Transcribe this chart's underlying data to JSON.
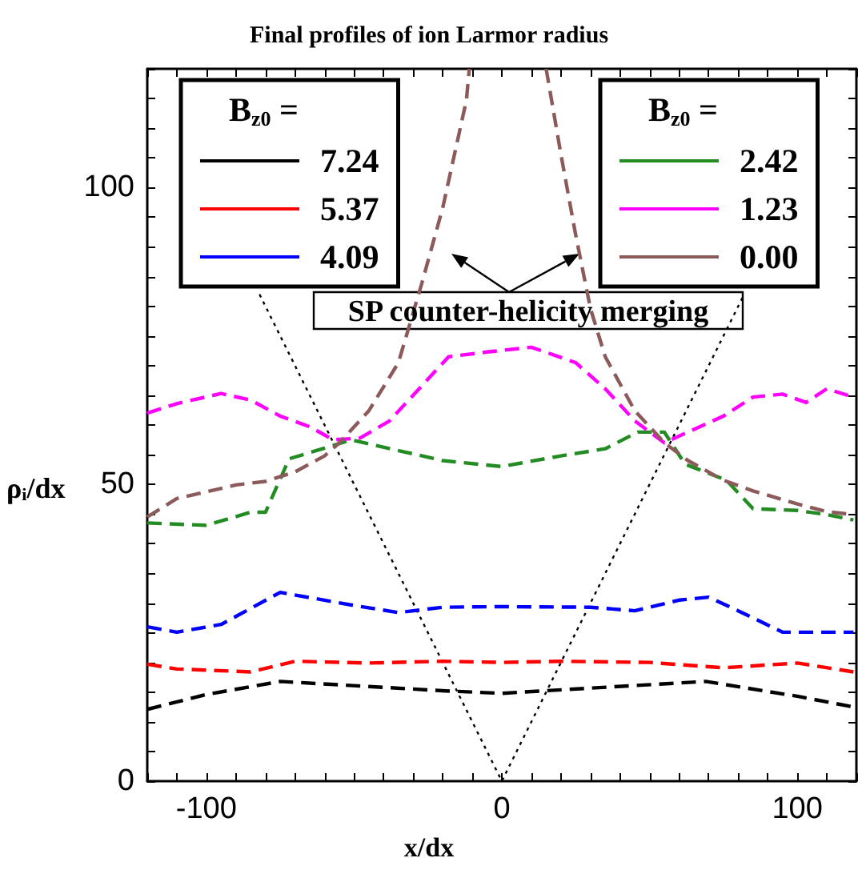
{
  "chart_data": {
    "type": "line",
    "title": "Final profiles of ion Larmor radius",
    "xlabel": "x/dx",
    "ylabel": "ρ$_{i}$/dx",
    "legend_title": "B$_{z0}$ =",
    "xlim": [
      -120,
      120
    ],
    "ylim": [
      0,
      120
    ],
    "xticks": [
      {
        "value": -120,
        "label": null
      },
      {
        "value": -110,
        "label": null
      },
      -100,
      {
        "value": -90,
        "label": null
      },
      {
        "value": -80,
        "label": null
      },
      {
        "value": -70,
        "label": null
      },
      {
        "value": -60,
        "label": null
      },
      {
        "value": -50,
        "label": null
      },
      {
        "value": -40,
        "label": null
      },
      {
        "value": -30,
        "label": null
      },
      {
        "value": -20,
        "label": null
      },
      {
        "value": -10,
        "label": null
      },
      0,
      {
        "value": 10,
        "label": null
      },
      {
        "value": 20,
        "label": null
      },
      {
        "value": 30,
        "label": null
      },
      {
        "value": 40,
        "label": null
      },
      {
        "value": 50,
        "label": null
      },
      {
        "value": 60,
        "label": null
      },
      {
        "value": 70,
        "label": null
      },
      {
        "value": 80,
        "label": null
      },
      {
        "value": 90,
        "label": null
      },
      100,
      {
        "value": 110,
        "label": null
      },
      {
        "value": 120,
        "label": null
      }
    ],
    "yticks": [
      0,
      {
        "value": 5,
        "label": null
      },
      {
        "value": 10,
        "label": null
      },
      {
        "value": 15,
        "label": null
      },
      {
        "value": 20,
        "label": null
      },
      {
        "value": 25,
        "label": null
      },
      {
        "value": 30,
        "label": null
      },
      {
        "value": 35,
        "label": null
      },
      {
        "value": 40,
        "label": null
      },
      {
        "value": 45,
        "label": null
      },
      50,
      {
        "value": 55,
        "label": null
      },
      {
        "value": 60,
        "label": null
      },
      {
        "value": 65,
        "label": null
      },
      {
        "value": 70,
        "label": null
      },
      {
        "value": 75,
        "label": null
      },
      {
        "value": 80,
        "label": null
      },
      {
        "value": 85,
        "label": null
      },
      {
        "value": 90,
        "label": null
      },
      {
        "value": 95,
        "label": null
      },
      100,
      {
        "value": 105,
        "label": null
      },
      {
        "value": 110,
        "label": null
      },
      {
        "value": 115,
        "label": null
      },
      {
        "value": 120,
        "label": null
      }
    ],
    "grid": false,
    "legend": "top",
    "marker": "none",
    "line_style": "dashed",
    "annotations": [
      "SP counter-helicity merging"
    ],
    "series": [
      {
        "name": "7.24",
        "color": "#000000",
        "x": [
          -120,
          -100,
          -75,
          -19,
          0,
          69,
          100,
          119
        ],
        "values": [
          12.1,
          14.6,
          16.8,
          15.2,
          14.8,
          16.8,
          14.3,
          12.5
        ]
      },
      {
        "name": "5.37",
        "color": "#ff0000",
        "x": [
          -120,
          -110,
          -85,
          -70,
          -45,
          -20,
          0,
          20,
          50,
          75,
          100,
          119
        ],
        "values": [
          19.7,
          18.9,
          18.4,
          20.2,
          19.9,
          20.2,
          20.0,
          20.2,
          20.0,
          19.1,
          19.9,
          18.4
        ]
      },
      {
        "name": "4.09",
        "color": "#0000ff",
        "x": [
          -120,
          -110,
          -95,
          -75,
          -50,
          -35,
          -20,
          0,
          30,
          45,
          60,
          70,
          80,
          95,
          119
        ],
        "values": [
          26.0,
          25.1,
          26.4,
          31.8,
          29.6,
          28.4,
          29.3,
          29.4,
          29.3,
          28.7,
          30.5,
          31.0,
          28.7,
          25.1,
          25.1
        ]
      },
      {
        "name": "2.42",
        "color": "#228b22",
        "x": [
          -120,
          -100,
          -85,
          -80,
          -72,
          -60,
          -51,
          -20,
          0,
          20,
          35,
          46,
          55,
          62,
          76,
          85,
          100,
          110,
          119
        ],
        "values": [
          43.5,
          43.1,
          45.3,
          45.3,
          54.3,
          56.1,
          57.5,
          54.0,
          53.0,
          54.8,
          56.0,
          58.8,
          58.8,
          53.4,
          50.7,
          45.9,
          45.6,
          44.9,
          44.0
        ]
      },
      {
        "name": "1.23",
        "color": "#ff00ff",
        "x": [
          -120,
          -110,
          -95,
          -85,
          -75,
          -65,
          -57,
          -48,
          -38,
          -28,
          -18,
          -5,
          10,
          25,
          35,
          45,
          55,
          63,
          75,
          85,
          95,
          103,
          110,
          119
        ],
        "values": [
          62.0,
          63.6,
          65.3,
          64.2,
          61.5,
          59.7,
          57.5,
          57.8,
          60.7,
          66.1,
          71.5,
          72.3,
          73.1,
          70.5,
          66.1,
          60.7,
          57.0,
          58.8,
          61.5,
          64.7,
          65.2,
          63.8,
          66.1,
          64.7
        ]
      },
      {
        "name": "0.00",
        "color": "#8c5a5a",
        "x": [
          -120,
          -110,
          -90,
          -80,
          -70,
          -60,
          -55,
          -45,
          -35,
          -27,
          -20,
          -12,
          -11,
          0,
          15,
          20,
          25,
          30,
          35,
          45,
          55,
          63,
          75,
          85,
          100,
          110,
          119
        ],
        "values": [
          44.5,
          47.6,
          49.9,
          50.5,
          52.1,
          54.8,
          57.0,
          62.4,
          70.5,
          84.0,
          96.6,
          114.7,
          120,
          null,
          120,
          105.6,
          92.0,
          79.6,
          71.5,
          62.4,
          57.0,
          54.0,
          50.7,
          48.9,
          46.7,
          45.4,
          44.9
        ]
      },
      {
        "color": "#000000",
        "line_style": "dotted",
        "x": [
          -82,
          0,
          82
        ],
        "values": [
          82,
          0,
          82
        ]
      }
    ]
  }
}
